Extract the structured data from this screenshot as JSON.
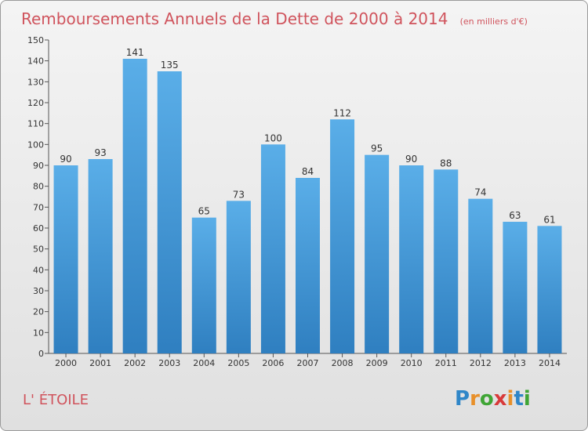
{
  "header": {
    "title": "Remboursements Annuels de la Dette de 2000 à 2014",
    "unit": "(en milliers d'€)"
  },
  "commune": "L' ÉTOILE",
  "logo": {
    "letters": [
      "P",
      "r",
      "o",
      "x",
      "i",
      "t",
      "i"
    ],
    "colors": [
      "#2f86c8",
      "#e8902a",
      "#3fa535",
      "#d83a3a",
      "#e8902a",
      "#2f86c8",
      "#3fa535"
    ]
  },
  "chart_data": {
    "type": "bar",
    "categories": [
      "2000",
      "2001",
      "2002",
      "2003",
      "2004",
      "2005",
      "2006",
      "2007",
      "2008",
      "2009",
      "2010",
      "2011",
      "2012",
      "2013",
      "2014"
    ],
    "values": [
      90,
      93,
      141,
      135,
      65,
      73,
      100,
      84,
      112,
      95,
      90,
      88,
      74,
      63,
      61
    ],
    "title": "Remboursements Annuels de la Dette de 2000 à 2014",
    "xlabel": "",
    "ylabel": "",
    "ylim": [
      0,
      150
    ],
    "yticks": [
      0,
      10,
      20,
      30,
      40,
      50,
      60,
      70,
      80,
      90,
      100,
      110,
      120,
      130,
      140,
      150
    ],
    "grid": false,
    "legend": "none",
    "bar_color_top": "#5aaee8",
    "bar_color_bottom": "#2f7fc0"
  }
}
